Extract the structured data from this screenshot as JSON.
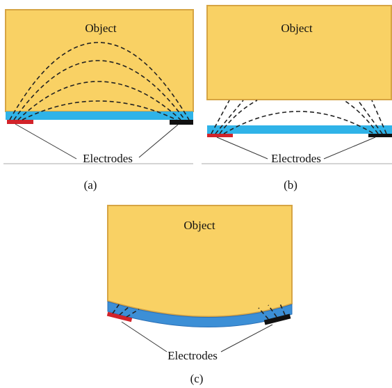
{
  "panels": [
    {
      "object": "Object",
      "electrodes": "Electrodes",
      "caption": "(a)"
    },
    {
      "object": "Object",
      "electrodes": "Electrodes",
      "caption": "(b)"
    },
    {
      "object": "Object",
      "electrodes": "Electrodes",
      "caption": "(c)"
    }
  ]
}
